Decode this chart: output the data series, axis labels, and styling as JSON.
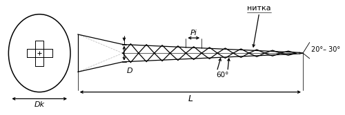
{
  "bg_color": "#ffffff",
  "line_color": "#000000",
  "gray_color": "#bbbbbb",
  "fig_width": 5.0,
  "fig_height": 1.67,
  "dpi": 100,
  "label_Dk": "Dk",
  "label_D": "D",
  "label_Pi": "Pi",
  "label_L": "L",
  "label_nitka": "нитка",
  "label_angle1": "20°– 30°",
  "label_angle2": "60°"
}
